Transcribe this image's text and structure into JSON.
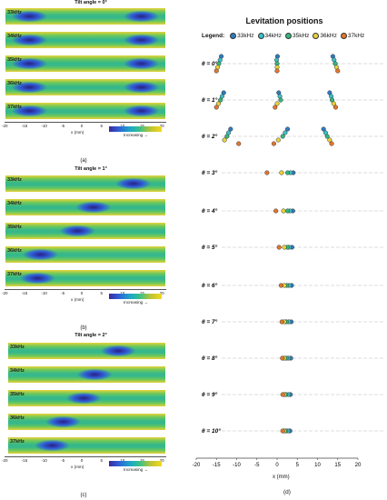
{
  "panels": [
    {
      "id": "a",
      "title": "Tilt angle = 0°",
      "caption": "(a)",
      "frequencies": [
        "33kHz",
        "34kHz",
        "35kHz",
        "36kHz",
        "37kHz"
      ],
      "colorbar_label": "Increasing",
      "x_ticks": [
        "-20",
        "-15",
        "-10",
        "-5",
        "0",
        "5",
        "10",
        "15",
        "20"
      ],
      "x_label": "x (mm)"
    },
    {
      "id": "b",
      "title": "Tilt angle = 1°",
      "caption": "(b)",
      "frequencies": [
        "33kHz",
        "34kHz",
        "35kHz",
        "36kHz",
        "37kHz"
      ],
      "colorbar_label": "Increasing",
      "x_ticks": [
        "-20",
        "-15",
        "-10",
        "-5",
        "0",
        "5",
        "10",
        "15",
        "20"
      ],
      "x_label": "x (mm)"
    },
    {
      "id": "c",
      "title": "Tilt angle = 2°",
      "caption": "(c)",
      "frequencies": [
        "33kHz",
        "34kHz",
        "35kHz",
        "36kHz",
        "37kHz"
      ],
      "colorbar_label": "Increasing",
      "x_ticks": [
        "-20",
        "-15",
        "-10",
        "-5",
        "0",
        "5",
        "10",
        "15",
        "20"
      ],
      "x_label": "x (mm)"
    }
  ],
  "levitation": {
    "title": "Levitation positions",
    "legend_label": "Legend:",
    "legend": [
      {
        "name": "33kHz",
        "color": "#2e7bbf"
      },
      {
        "name": "34kHz",
        "color": "#3cc0c8"
      },
      {
        "name": "35kHz",
        "color": "#35b57a"
      },
      {
        "name": "36kHz",
        "color": "#e8d23a"
      },
      {
        "name": "37kHz",
        "color": "#e2762d"
      }
    ],
    "angles": [
      "θ = 0°",
      "θ = 1°",
      "θ = 2°",
      "θ = 3°",
      "θ = 4°",
      "θ = 5°",
      "θ = 6°",
      "θ = 7°",
      "θ = 8°",
      "θ = 9°",
      "θ = 10°"
    ],
    "x_ticks": [
      "-20",
      "-15",
      "-10",
      "-5",
      "0",
      "5",
      "10",
      "15",
      "20"
    ],
    "x_label": "x (mm)",
    "caption": "(d)"
  },
  "chart_data": {
    "type": "scatter",
    "title": "Levitation positions",
    "xlabel": "x (mm)",
    "xlim": [
      -20,
      20
    ],
    "series": [
      {
        "name": "33kHz",
        "color": "#2e7bbf",
        "points": [
          {
            "theta": 0,
            "x": [
              -13.8,
              0.1,
              13.8
            ]
          },
          {
            "theta": 1,
            "x": [
              -13.2,
              0.4,
              13.0
            ]
          },
          {
            "theta": 2,
            "x": [
              -11.5,
              2.6,
              11.5
            ]
          },
          {
            "theta": 3,
            "x": [
              4.0
            ]
          },
          {
            "theta": 4,
            "x": [
              3.9
            ]
          },
          {
            "theta": 5,
            "x": [
              3.7
            ]
          },
          {
            "theta": 6,
            "x": [
              3.6
            ]
          },
          {
            "theta": 7,
            "x": [
              3.5
            ]
          },
          {
            "theta": 8,
            "x": [
              3.4
            ]
          },
          {
            "theta": 9,
            "x": [
              3.3
            ]
          },
          {
            "theta": 10,
            "x": [
              3.2
            ]
          }
        ]
      },
      {
        "name": "34kHz",
        "color": "#3cc0c8",
        "points": [
          {
            "theta": 0,
            "x": [
              -14.1,
              -0.1,
              14.1
            ]
          },
          {
            "theta": 1,
            "x": [
              -13.6,
              0.7,
              13.4
            ]
          },
          {
            "theta": 2,
            "x": [
              -12.0,
              2.0,
              12.0
            ]
          },
          {
            "theta": 3,
            "x": [
              3.3
            ]
          },
          {
            "theta": 4,
            "x": [
              3.2
            ]
          },
          {
            "theta": 5,
            "x": [
              3.0
            ]
          },
          {
            "theta": 6,
            "x": [
              3.0
            ]
          },
          {
            "theta": 7,
            "x": [
              2.9
            ]
          },
          {
            "theta": 8,
            "x": [
              2.8
            ]
          },
          {
            "theta": 9,
            "x": [
              2.8
            ]
          },
          {
            "theta": 10,
            "x": [
              2.7
            ]
          }
        ]
      },
      {
        "name": "35kHz",
        "color": "#35b57a",
        "points": [
          {
            "theta": 0,
            "x": [
              -14.4,
              0.0,
              14.4
            ]
          },
          {
            "theta": 1,
            "x": [
              -14.0,
              0.9,
              13.6
            ]
          },
          {
            "theta": 2,
            "x": [
              -12.4,
              1.4,
              12.4
            ]
          },
          {
            "theta": 3,
            "x": [
              2.6
            ]
          },
          {
            "theta": 4,
            "x": [
              2.6
            ]
          },
          {
            "theta": 5,
            "x": [
              2.5
            ]
          },
          {
            "theta": 6,
            "x": [
              2.4
            ]
          },
          {
            "theta": 7,
            "x": [
              2.3
            ]
          },
          {
            "theta": 8,
            "x": [
              2.3
            ]
          },
          {
            "theta": 9,
            "x": [
              2.2
            ]
          },
          {
            "theta": 10,
            "x": [
              2.2
            ]
          }
        ]
      },
      {
        "name": "36kHz",
        "color": "#e8d23a",
        "points": [
          {
            "theta": 0,
            "x": [
              -14.7,
              0.0,
              14.7
            ]
          },
          {
            "theta": 1,
            "x": [
              -14.5,
              0.0,
              14.0
            ]
          },
          {
            "theta": 2,
            "x": [
              -13.0,
              0.3,
              13.0
            ]
          },
          {
            "theta": 3,
            "x": [
              1.1
            ]
          },
          {
            "theta": 4,
            "x": [
              1.6
            ]
          },
          {
            "theta": 5,
            "x": [
              1.8
            ]
          },
          {
            "theta": 6,
            "x": [
              1.8
            ]
          },
          {
            "theta": 7,
            "x": [
              1.8
            ]
          },
          {
            "theta": 8,
            "x": [
              1.8
            ]
          },
          {
            "theta": 9,
            "x": [
              1.8
            ]
          },
          {
            "theta": 10,
            "x": [
              1.8
            ]
          }
        ]
      },
      {
        "name": "37kHz",
        "color": "#e2762d",
        "points": [
          {
            "theta": 0,
            "x": [
              -15.0,
              0.0,
              15.0
            ]
          },
          {
            "theta": 1,
            "x": [
              -15.0,
              -0.5,
              14.5
            ]
          },
          {
            "theta": 2,
            "x": [
              -9.5,
              -0.8,
              13.5
            ]
          },
          {
            "theta": 3,
            "x": [
              -2.5
            ]
          },
          {
            "theta": 4,
            "x": [
              -0.3
            ]
          },
          {
            "theta": 5,
            "x": [
              0.5
            ]
          },
          {
            "theta": 6,
            "x": [
              1.0
            ]
          },
          {
            "theta": 7,
            "x": [
              1.2
            ]
          },
          {
            "theta": 8,
            "x": [
              1.3
            ]
          },
          {
            "theta": 9,
            "x": [
              1.4
            ]
          },
          {
            "theta": 10,
            "x": [
              1.4
            ]
          }
        ]
      }
    ]
  }
}
